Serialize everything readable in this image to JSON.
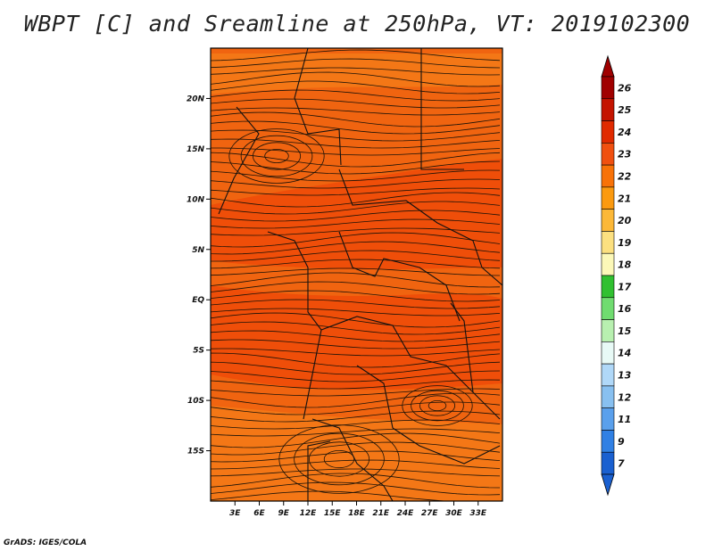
{
  "title": "WBPT [C] and Sreamline at 250hPa, VT: 2019102300",
  "credit": "GrADS: IGES/COLA",
  "map": {
    "lon_range": [
      0,
      36
    ],
    "lat_range": [
      -20,
      25
    ],
    "lat_ticks": [
      {
        "value": 20,
        "label": "20N"
      },
      {
        "value": 15,
        "label": "15N"
      },
      {
        "value": 10,
        "label": "10N"
      },
      {
        "value": 5,
        "label": "5N"
      },
      {
        "value": 0,
        "label": "EQ"
      },
      {
        "value": -5,
        "label": "5S"
      },
      {
        "value": -10,
        "label": "10S"
      },
      {
        "value": -15,
        "label": "15S"
      }
    ],
    "lon_ticks": [
      {
        "value": 3,
        "label": "3E"
      },
      {
        "value": 6,
        "label": "6E"
      },
      {
        "value": 9,
        "label": "9E"
      },
      {
        "value": 12,
        "label": "12E"
      },
      {
        "value": 15,
        "label": "15E"
      },
      {
        "value": 18,
        "label": "18E"
      },
      {
        "value": 21,
        "label": "21E"
      },
      {
        "value": 24,
        "label": "24E"
      },
      {
        "value": 27,
        "label": "27E"
      },
      {
        "value": 30,
        "label": "30E"
      },
      {
        "value": 33,
        "label": "33E"
      }
    ],
    "fill_colors": {
      "base": "#f06410",
      "warm": "#ee4a08",
      "cool": "#f47a18"
    }
  },
  "colorbar": {
    "levels": [
      {
        "label": "26",
        "color": "#a00000"
      },
      {
        "label": "25",
        "color": "#c41400"
      },
      {
        "label": "24",
        "color": "#e02a00"
      },
      {
        "label": "23",
        "color": "#f05010"
      },
      {
        "label": "22",
        "color": "#f87208"
      },
      {
        "label": "21",
        "color": "#fb9a10"
      },
      {
        "label": "20",
        "color": "#fcb838"
      },
      {
        "label": "19",
        "color": "#fce080"
      },
      {
        "label": "18",
        "color": "#fcf8b8"
      },
      {
        "label": "17",
        "color": "#30c030"
      },
      {
        "label": "16",
        "color": "#70dc70"
      },
      {
        "label": "15",
        "color": "#b8f0b0"
      },
      {
        "label": "14",
        "color": "#e8faf6"
      },
      {
        "label": "13",
        "color": "#b0d8f8"
      },
      {
        "label": "12",
        "color": "#88c0f0"
      },
      {
        "label": "11",
        "color": "#5aa0ec"
      },
      {
        "label": "9",
        "color": "#3080e4"
      },
      {
        "label": "7",
        "color": "#1a60d0"
      }
    ]
  }
}
